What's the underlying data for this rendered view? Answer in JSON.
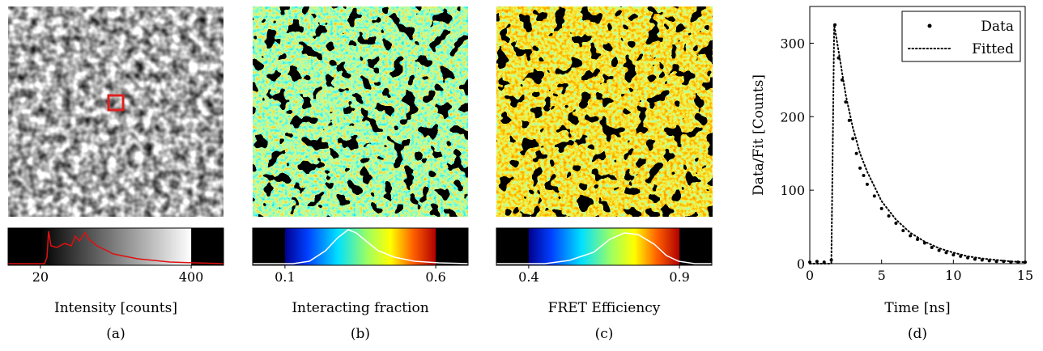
{
  "image_panels": [
    {
      "colorbar": {
        "range": [
          20,
          400
        ],
        "ticks": [
          20,
          400
        ],
        "label": "Intensity [counts]"
      },
      "caption": "(a)"
    },
    {
      "colorbar": {
        "range": [
          0.1,
          0.6
        ],
        "ticks": [
          0.1,
          0.6
        ],
        "label": "Interacting fraction"
      },
      "caption": "(b)"
    },
    {
      "colorbar": {
        "range": [
          0.4,
          0.9
        ],
        "ticks": [
          0.4,
          0.9
        ],
        "label": "FRET Efficiency"
      },
      "caption": "(c)"
    }
  ],
  "chart_data": {
    "type": "scatter-line",
    "caption": "(d)",
    "xlabel": "Time [ns]",
    "ylabel": "Data/Fit [Counts]",
    "xlim": [
      0,
      15
    ],
    "xticks": [
      0,
      5,
      10,
      15
    ],
    "ylim": [
      0,
      350
    ],
    "yticks": [
      0,
      100,
      200,
      300
    ],
    "legend": "upper-right",
    "series": [
      {
        "name": "Data",
        "color": "#000000",
        "style": "dots",
        "x": [
          0,
          0.5,
          1,
          1.5,
          1.75,
          2,
          2.25,
          2.5,
          2.75,
          3,
          3.25,
          3.5,
          3.75,
          4,
          4.5,
          5,
          5.5,
          6,
          6.5,
          7,
          7.5,
          8,
          8.5,
          9,
          9.5,
          10,
          10.5,
          11,
          11.5,
          12,
          12.5,
          13,
          13.5,
          14,
          14.5,
          15
        ],
        "values": [
          2,
          3,
          2,
          5,
          325,
          280,
          250,
          220,
          195,
          170,
          150,
          130,
          120,
          108,
          92,
          75,
          65,
          55,
          45,
          38,
          33,
          28,
          22,
          18,
          15,
          12,
          10,
          8,
          6,
          5,
          4,
          3,
          3,
          2,
          2,
          2
        ]
      },
      {
        "name": "Fitted",
        "color": "#000000",
        "style": "dotted",
        "x": [
          0,
          1.5,
          1.6,
          1.7,
          2,
          2.5,
          3,
          3.5,
          4,
          5,
          6,
          7,
          8,
          9,
          10,
          11,
          12,
          13,
          14,
          15
        ],
        "values": [
          0,
          0,
          160,
          325,
          290,
          230,
          185,
          150,
          125,
          85,
          60,
          42,
          30,
          21,
          15,
          10,
          7,
          5,
          3,
          2
        ]
      }
    ]
  }
}
